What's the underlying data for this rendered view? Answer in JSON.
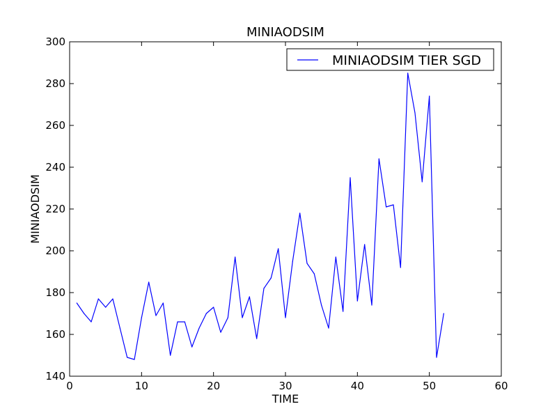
{
  "chart_data": {
    "type": "line",
    "title": "MINIAODSIM",
    "xlabel": "TIME",
    "ylabel": "MINIAODSIM",
    "xlim": [
      0,
      60
    ],
    "ylim": [
      140,
      300
    ],
    "xticks": [
      "0",
      "10",
      "20",
      "30",
      "40",
      "50",
      "60"
    ],
    "yticks": [
      "140",
      "160",
      "180",
      "200",
      "220",
      "240",
      "260",
      "280",
      "300"
    ],
    "grid": false,
    "legend_position": "top-right",
    "series": [
      {
        "name": "MINIAODSIM TIER SGD",
        "color": "#0000ff",
        "x": [
          1,
          2,
          3,
          4,
          5,
          6,
          7,
          8,
          9,
          10,
          11,
          12,
          13,
          14,
          15,
          16,
          17,
          18,
          19,
          20,
          21,
          22,
          23,
          24,
          25,
          26,
          27,
          28,
          29,
          30,
          31,
          32,
          33,
          34,
          35,
          36,
          37,
          38,
          39,
          40,
          41,
          42,
          43,
          44,
          45,
          46,
          47,
          48,
          49,
          50,
          51,
          52
        ],
        "y": [
          175,
          170,
          166,
          177,
          173,
          177,
          163,
          149,
          148,
          168,
          185,
          169,
          175,
          150,
          166,
          166,
          154,
          163,
          170,
          173,
          161,
          168,
          197,
          168,
          178,
          158,
          182,
          187,
          201,
          168,
          195,
          218,
          194,
          189,
          174,
          163,
          197,
          171,
          235,
          176,
          203,
          174,
          244,
          221,
          222,
          192,
          285,
          266,
          233,
          274,
          149,
          170
        ]
      }
    ]
  }
}
